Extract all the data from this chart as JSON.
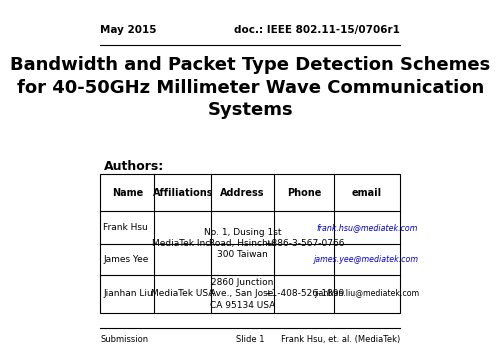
{
  "header_left": "May 2015",
  "header_right": "doc.: IEEE 802.11-15/0706r1",
  "title": "Bandwidth and Packet Type Detection Schemes\nfor 40-50GHz Millimeter Wave Communication\nSystems",
  "authors_label": "Authors:",
  "table_headers": [
    "Name",
    "Affiliations",
    "Address",
    "Phone",
    "email"
  ],
  "footer_left": "Submission",
  "footer_center": "Slide 1",
  "footer_right": "Frank Hsu, et. al. (MediaTek)",
  "bg_color": "#ffffff",
  "text_color": "#000000",
  "table_line_color": "#000000",
  "title_fontsize": 13,
  "header_fontsize": 7.5,
  "authors_fontsize": 9,
  "table_header_fontsize": 7,
  "table_body_fontsize": 6.5,
  "footer_fontsize": 6,
  "email_color_frank": "#0000cc",
  "email_color_james": "#0000cc",
  "email_color_jianhan": "#000000"
}
